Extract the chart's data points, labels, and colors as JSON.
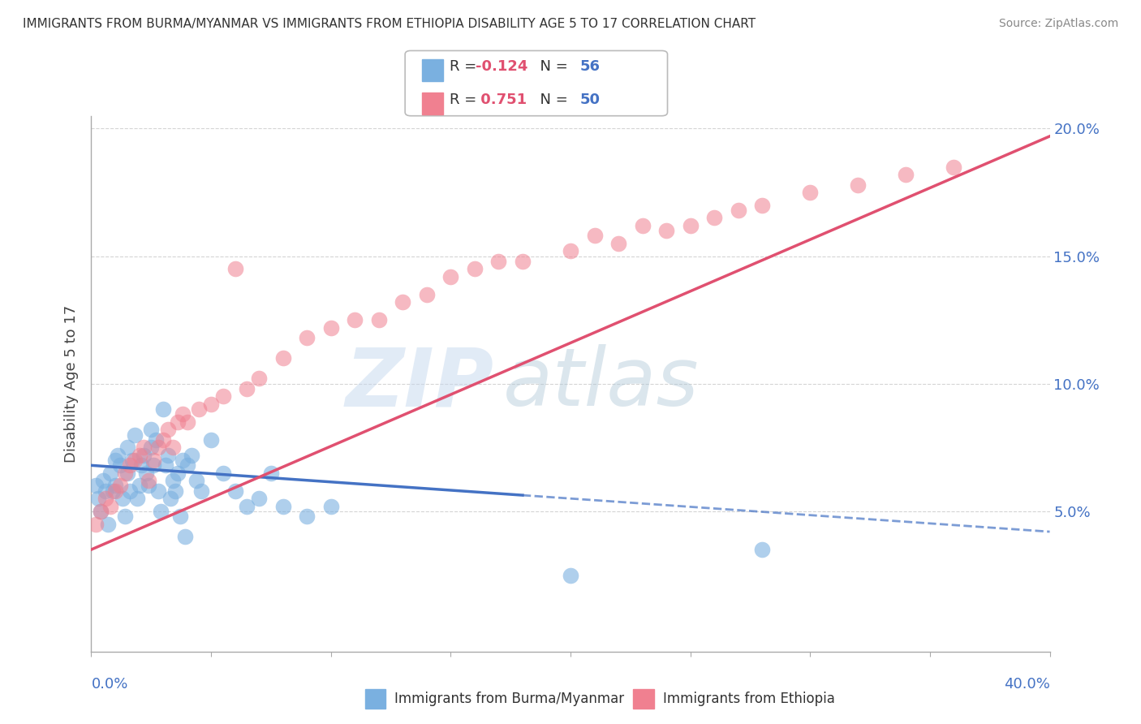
{
  "title": "IMMIGRANTS FROM BURMA/MYANMAR VS IMMIGRANTS FROM ETHIOPIA DISABILITY AGE 5 TO 17 CORRELATION CHART",
  "source": "Source: ZipAtlas.com",
  "ylabel": "Disability Age 5 to 17",
  "xlim": [
    0.0,
    0.4
  ],
  "ylim": [
    -0.005,
    0.205
  ],
  "yticks": [
    0.0,
    0.05,
    0.1,
    0.15,
    0.2
  ],
  "xticks": [
    0.0,
    0.05,
    0.1,
    0.15,
    0.2,
    0.25,
    0.3,
    0.35,
    0.4
  ],
  "ytick_labels": [
    "",
    "5.0%",
    "10.0%",
    "15.0%",
    "20.0%"
  ],
  "legend_labels": [
    "Immigrants from Burma/Myanmar",
    "Immigrants from Ethiopia"
  ],
  "series1_color": "#7ab0e0",
  "series2_color": "#f08090",
  "trendline1_color": "#4472c4",
  "trendline2_color": "#e05070",
  "background_color": "#ffffff",
  "grid_color": "#d4d4d4",
  "watermark1": "ZIP",
  "watermark2": "atlas",
  "r1": "-0.124",
  "n1": "56",
  "r2": "0.751",
  "n2": "50",
  "series1_x": [
    0.002,
    0.003,
    0.004,
    0.005,
    0.006,
    0.007,
    0.008,
    0.009,
    0.01,
    0.01,
    0.011,
    0.012,
    0.013,
    0.014,
    0.015,
    0.015,
    0.016,
    0.017,
    0.018,
    0.019,
    0.02,
    0.021,
    0.022,
    0.023,
    0.024,
    0.025,
    0.025,
    0.026,
    0.027,
    0.028,
    0.029,
    0.03,
    0.031,
    0.032,
    0.033,
    0.034,
    0.035,
    0.036,
    0.037,
    0.038,
    0.039,
    0.04,
    0.042,
    0.044,
    0.046,
    0.05,
    0.055,
    0.06,
    0.065,
    0.07,
    0.075,
    0.08,
    0.09,
    0.1,
    0.2,
    0.28
  ],
  "series1_y": [
    0.06,
    0.055,
    0.05,
    0.062,
    0.058,
    0.045,
    0.065,
    0.058,
    0.07,
    0.06,
    0.072,
    0.068,
    0.055,
    0.048,
    0.075,
    0.065,
    0.058,
    0.07,
    0.08,
    0.055,
    0.06,
    0.068,
    0.072,
    0.065,
    0.06,
    0.082,
    0.075,
    0.068,
    0.078,
    0.058,
    0.05,
    0.09,
    0.068,
    0.072,
    0.055,
    0.062,
    0.058,
    0.065,
    0.048,
    0.07,
    0.04,
    0.068,
    0.072,
    0.062,
    0.058,
    0.078,
    0.065,
    0.058,
    0.052,
    0.055,
    0.065,
    0.052,
    0.048,
    0.052,
    0.025,
    0.035
  ],
  "series2_x": [
    0.002,
    0.004,
    0.006,
    0.008,
    0.01,
    0.012,
    0.014,
    0.016,
    0.018,
    0.02,
    0.022,
    0.024,
    0.026,
    0.028,
    0.03,
    0.032,
    0.034,
    0.036,
    0.038,
    0.04,
    0.045,
    0.05,
    0.055,
    0.06,
    0.065,
    0.07,
    0.08,
    0.09,
    0.1,
    0.12,
    0.14,
    0.16,
    0.18,
    0.2,
    0.22,
    0.24,
    0.26,
    0.28,
    0.3,
    0.32,
    0.34,
    0.36,
    0.25,
    0.27,
    0.21,
    0.23,
    0.17,
    0.15,
    0.13,
    0.11
  ],
  "series2_y": [
    0.045,
    0.05,
    0.055,
    0.052,
    0.058,
    0.06,
    0.065,
    0.068,
    0.07,
    0.072,
    0.075,
    0.062,
    0.07,
    0.075,
    0.078,
    0.082,
    0.075,
    0.085,
    0.088,
    0.085,
    0.09,
    0.092,
    0.095,
    0.145,
    0.098,
    0.102,
    0.11,
    0.118,
    0.122,
    0.125,
    0.135,
    0.145,
    0.148,
    0.152,
    0.155,
    0.16,
    0.165,
    0.17,
    0.175,
    0.178,
    0.182,
    0.185,
    0.162,
    0.168,
    0.158,
    0.162,
    0.148,
    0.142,
    0.132,
    0.125
  ],
  "trendline1_x": [
    0.0,
    0.4
  ],
  "trendline1_y": [
    0.068,
    0.042
  ],
  "trendline2_x": [
    0.0,
    0.4
  ],
  "trendline2_y": [
    0.035,
    0.197
  ]
}
